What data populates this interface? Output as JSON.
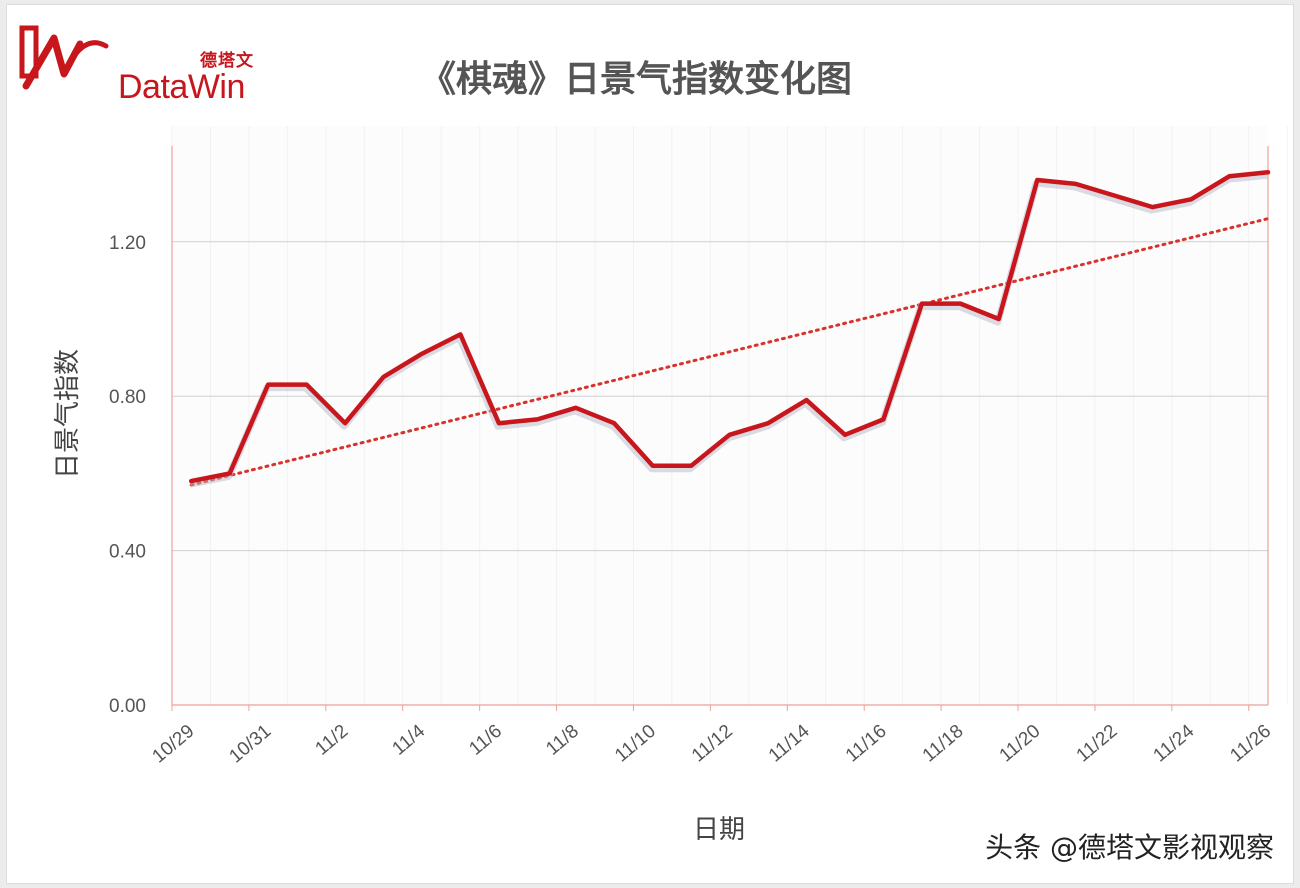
{
  "brand": {
    "name_cn": "德塔文",
    "name_en": "DataWin",
    "color": "#c8161d"
  },
  "watermark": "头条 @德塔文影视观察",
  "colors": {
    "line": "#c8161d",
    "trend": "#d9312b",
    "grid": "#d0d0d0",
    "axis": "#f0a098"
  },
  "chart_data": {
    "type": "line",
    "title": "《棋魂》日景气指数变化图",
    "xlabel": "日期",
    "ylabel": "日景气指数",
    "ylim": [
      0,
      1.5
    ],
    "yticks": [
      "0.00",
      "0.40",
      "0.80",
      "1.20"
    ],
    "ytick_values": [
      0,
      0.4,
      0.8,
      1.2
    ],
    "x_tick_labels": [
      "10/29",
      "10/31",
      "11/2",
      "11/4",
      "11/6",
      "11/8",
      "11/10",
      "11/12",
      "11/14",
      "11/16",
      "11/18",
      "11/20",
      "11/22",
      "11/24",
      "11/26"
    ],
    "grid": true,
    "x": [
      "10/29",
      "10/30",
      "10/31",
      "11/1",
      "11/2",
      "11/3",
      "11/4",
      "11/5",
      "11/6",
      "11/7",
      "11/8",
      "11/9",
      "11/10",
      "11/11",
      "11/12",
      "11/13",
      "11/14",
      "11/15",
      "11/16",
      "11/17",
      "11/18",
      "11/19",
      "11/20",
      "11/21",
      "11/22",
      "11/23",
      "11/24",
      "11/25",
      "11/26"
    ],
    "series": [
      {
        "values": [
          0.58,
          0.6,
          0.83,
          0.83,
          0.73,
          0.85,
          0.91,
          0.96,
          0.73,
          0.74,
          0.77,
          0.73,
          0.62,
          0.62,
          0.7,
          0.73,
          0.79,
          0.7,
          0.74,
          1.04,
          1.04,
          1.0,
          1.36,
          1.35,
          1.32,
          1.29,
          1.31,
          1.37,
          1.38
        ]
      }
    ],
    "trendline": {
      "style": "dotted",
      "start": 0.57,
      "end": 1.26
    }
  }
}
